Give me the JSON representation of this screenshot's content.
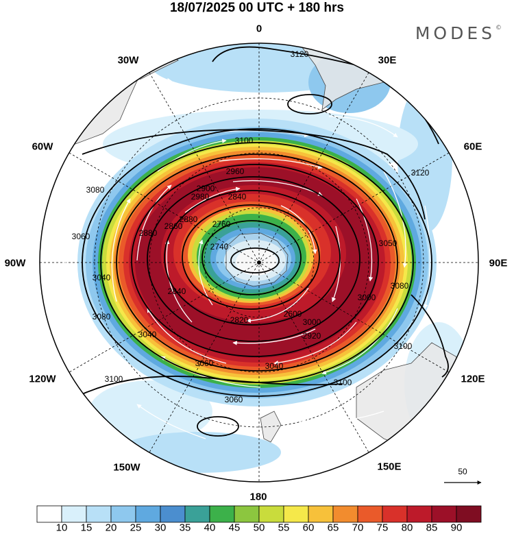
{
  "title": "18/07/2025  00 UTC  + 180 hrs",
  "brand": "MODES",
  "brand_mark": "©",
  "longitude_labels": {
    "n": "0",
    "nne": "30E",
    "ene": "60E",
    "e": "90E",
    "ese": "120E",
    "sse": "150E",
    "s": "180",
    "ssw": "150W",
    "wsw": "120W",
    "w": "90W",
    "wnw": "60W",
    "nnw": "30W"
  },
  "reference_vector": {
    "value": "50"
  },
  "contour_labels": [
    "3120",
    "3120",
    "3100",
    "3100",
    "3100",
    "3100",
    "3080",
    "3080",
    "3080",
    "3060",
    "3060",
    "3060",
    "3050",
    "3040",
    "3040",
    "3040",
    "3000",
    "3000",
    "2980",
    "2960",
    "2920",
    "2900",
    "2880",
    "2880",
    "2860",
    "2840",
    "2840",
    "2820",
    "2760",
    "2740",
    "2600"
  ],
  "colorbar": {
    "labels": [
      "10",
      "15",
      "20",
      "25",
      "30",
      "35",
      "40",
      "45",
      "50",
      "55",
      "60",
      "65",
      "70",
      "75",
      "80",
      "85",
      "90"
    ],
    "colors": [
      "#ffffff",
      "#d9f0fb",
      "#b8e0f7",
      "#8ec8ee",
      "#5fa9e0",
      "#4b8ecf",
      "#3aa198",
      "#3cb14a",
      "#8cc63f",
      "#c9dc3c",
      "#f5e84a",
      "#f7c13a",
      "#f28c2e",
      "#ea5a2a",
      "#d9312a",
      "#bd1a2a",
      "#9c1028",
      "#7f0d22"
    ]
  },
  "colors": {
    "land": "#e8e8e8",
    "coast": "#444444",
    "contour": "#000000",
    "arrow": "#ffffff"
  }
}
